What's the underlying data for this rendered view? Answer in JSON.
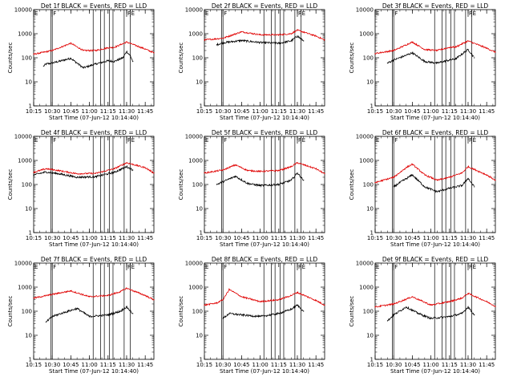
{
  "figure": {
    "colors": {
      "events": "#000000",
      "lld": "#e00000",
      "markers": "#000000",
      "background": "#ffffff"
    }
  },
  "chart_data": [
    {
      "type": "line",
      "title": "Det 1f BLACK = Events, RED = LLD",
      "xlabel": "Start Time (07-Jun-12 10:14:40)",
      "ylabel": "Counts/sec",
      "yscale": "log",
      "ylim": [
        1,
        10000
      ],
      "xlim": [
        "10:15",
        "11:52"
      ],
      "xticks": [
        "10:15",
        "10:30",
        "10:45",
        "11:00",
        "11:15",
        "11:30",
        "11:45"
      ],
      "yticks": [
        "1",
        "10",
        "100",
        "1000",
        "10000"
      ],
      "flags": [
        {
          "x": "10:15",
          "label": "E"
        },
        {
          "x": "10:30",
          "label": "F"
        },
        {
          "x": "11:30",
          "label": "F"
        },
        {
          "x": "11:33",
          "label": "E"
        }
      ],
      "marker_times": [
        "10:30",
        "10:29",
        "11:03",
        "11:09",
        "11:12",
        "11:16",
        "11:19",
        "11:28",
        "11:33"
      ],
      "series": [
        {
          "name": "Events",
          "color": "#000000",
          "x": [
            "10:23",
            "10:25",
            "10:30",
            "10:45",
            "10:55",
            "11:05",
            "11:15",
            "11:20",
            "11:27",
            "11:30",
            "11:33",
            "11:35"
          ],
          "values": [
            45,
            55,
            60,
            95,
            38,
            55,
            75,
            70,
            100,
            180,
            120,
            70
          ]
        },
        {
          "name": "LLD",
          "color": "#e00000",
          "x": [
            "10:15",
            "10:30",
            "10:45",
            "10:55",
            "11:05",
            "11:15",
            "11:20",
            "11:30",
            "11:45",
            "11:52"
          ],
          "values": [
            140,
            200,
            400,
            200,
            200,
            260,
            270,
            450,
            230,
            160
          ]
        }
      ]
    },
    {
      "type": "line",
      "title": "Det 2f BLACK = Events, RED = LLD",
      "xlabel": "Start Time (07-Jun-12 10:14:40)",
      "ylabel": "Counts/sec",
      "yscale": "log",
      "ylim": [
        1,
        10000
      ],
      "xlim": [
        "10:15",
        "11:52"
      ],
      "xticks": [
        "10:15",
        "10:30",
        "10:45",
        "11:00",
        "11:15",
        "11:30",
        "11:45"
      ],
      "yticks": [
        "1",
        "10",
        "100",
        "1000",
        "10000"
      ],
      "flags": [
        {
          "x": "10:15",
          "label": "E"
        },
        {
          "x": "10:30",
          "label": "F"
        },
        {
          "x": "11:30",
          "label": "F"
        },
        {
          "x": "11:33",
          "label": "E"
        }
      ],
      "marker_times": [
        "10:30",
        "10:29",
        "11:03",
        "11:09",
        "11:12",
        "11:16",
        "11:19",
        "11:28",
        "11:33"
      ],
      "series": [
        {
          "name": "Events",
          "color": "#000000",
          "x": [
            "10:25",
            "10:30",
            "10:45",
            "11:00",
            "11:15",
            "11:25",
            "11:30",
            "11:35"
          ],
          "values": [
            350,
            420,
            520,
            430,
            400,
            500,
            800,
            500
          ]
        },
        {
          "name": "LLD",
          "color": "#e00000",
          "x": [
            "10:15",
            "10:30",
            "10:45",
            "11:00",
            "11:15",
            "11:25",
            "11:30",
            "11:45",
            "11:52"
          ],
          "values": [
            550,
            650,
            1200,
            900,
            900,
            1000,
            1400,
            800,
            550
          ]
        }
      ]
    },
    {
      "type": "line",
      "title": "Det 3f BLACK = Events, RED = LLD",
      "xlabel": "Start Time (07-Jun-12 10:14:40)",
      "ylabel": "Counts/sec",
      "yscale": "log",
      "ylim": [
        1,
        10000
      ],
      "xlim": [
        "10:15",
        "11:52"
      ],
      "xticks": [
        "10:15",
        "10:30",
        "10:45",
        "11:00",
        "11:15",
        "11:30",
        "11:45"
      ],
      "yticks": [
        "1",
        "10",
        "100",
        "1000",
        "10000"
      ],
      "flags": [
        {
          "x": "10:15",
          "label": "E"
        },
        {
          "x": "10:30",
          "label": "F"
        },
        {
          "x": "11:30",
          "label": "F"
        },
        {
          "x": "11:33",
          "label": "E"
        }
      ],
      "marker_times": [
        "10:30",
        "10:29",
        "11:03",
        "11:09",
        "11:12",
        "11:16",
        "11:19",
        "11:28",
        "11:33"
      ],
      "series": [
        {
          "name": "Events",
          "color": "#000000",
          "x": [
            "10:25",
            "10:30",
            "10:45",
            "10:55",
            "11:05",
            "11:15",
            "11:20",
            "11:30",
            "11:35"
          ],
          "values": [
            60,
            80,
            160,
            70,
            60,
            80,
            90,
            220,
            100
          ]
        },
        {
          "name": "LLD",
          "color": "#e00000",
          "x": [
            "10:15",
            "10:30",
            "10:45",
            "10:55",
            "11:05",
            "11:15",
            "11:20",
            "11:30",
            "11:45",
            "11:52"
          ],
          "values": [
            150,
            200,
            450,
            220,
            200,
            270,
            280,
            500,
            250,
            170
          ]
        }
      ]
    },
    {
      "type": "line",
      "title": "Det 4f BLACK = Events, RED = LLD",
      "xlabel": "Start Time (07-Jun-12 10:14:40)",
      "ylabel": "Counts/sec",
      "yscale": "log",
      "ylim": [
        1,
        10000
      ],
      "xlim": [
        "10:15",
        "11:52"
      ],
      "xticks": [
        "10:15",
        "10:30",
        "10:45",
        "11:00",
        "11:15",
        "11:30",
        "11:45"
      ],
      "yticks": [
        "1",
        "10",
        "100",
        "1000",
        "10000"
      ],
      "flags": [
        {
          "x": "10:15",
          "label": "E"
        },
        {
          "x": "10:30",
          "label": "F"
        },
        {
          "x": "11:30",
          "label": "F"
        },
        {
          "x": "11:33",
          "label": "E"
        }
      ],
      "marker_times": [
        "10:30",
        "10:29",
        "11:03",
        "11:09",
        "11:12",
        "11:16",
        "11:19",
        "11:28",
        "11:33"
      ],
      "series": [
        {
          "name": "Events",
          "color": "#000000",
          "x": [
            "10:15",
            "10:25",
            "10:35",
            "10:50",
            "11:05",
            "11:20",
            "11:30",
            "11:35"
          ],
          "values": [
            250,
            330,
            280,
            200,
            210,
            320,
            550,
            400
          ]
        },
        {
          "name": "LLD",
          "color": "#e00000",
          "x": [
            "10:15",
            "10:25",
            "10:35",
            "10:50",
            "11:05",
            "11:20",
            "11:30",
            "11:45",
            "11:52"
          ],
          "values": [
            320,
            450,
            380,
            280,
            290,
            450,
            800,
            500,
            300
          ]
        }
      ]
    },
    {
      "type": "line",
      "title": "Det 5f BLACK = Events, RED = LLD",
      "xlabel": "Start Time (07-Jun-12 10:14:40)",
      "ylabel": "Counts/sec",
      "yscale": "log",
      "ylim": [
        1,
        10000
      ],
      "xlim": [
        "10:15",
        "11:52"
      ],
      "xticks": [
        "10:15",
        "10:30",
        "10:45",
        "11:00",
        "11:15",
        "11:30",
        "11:45"
      ],
      "yticks": [
        "1",
        "10",
        "100",
        "1000",
        "10000"
      ],
      "flags": [
        {
          "x": "10:15",
          "label": "E"
        },
        {
          "x": "10:30",
          "label": "F"
        },
        {
          "x": "11:30",
          "label": "F"
        },
        {
          "x": "11:33",
          "label": "E"
        }
      ],
      "marker_times": [
        "10:30",
        "10:29",
        "11:03",
        "11:09",
        "11:12",
        "11:16",
        "11:19",
        "11:28",
        "11:33"
      ],
      "series": [
        {
          "name": "Events",
          "color": "#000000",
          "x": [
            "10:25",
            "10:30",
            "10:40",
            "10:50",
            "11:00",
            "11:15",
            "11:25",
            "11:30",
            "11:35"
          ],
          "values": [
            100,
            130,
            220,
            110,
            90,
            100,
            150,
            300,
            150
          ]
        },
        {
          "name": "LLD",
          "color": "#e00000",
          "x": [
            "10:15",
            "10:30",
            "10:40",
            "10:50",
            "11:00",
            "11:15",
            "11:25",
            "11:30",
            "11:45",
            "11:52"
          ],
          "values": [
            300,
            400,
            650,
            380,
            350,
            380,
            550,
            800,
            450,
            280
          ]
        }
      ]
    },
    {
      "type": "line",
      "title": "Det 6f BLACK = Events, RED = LLD",
      "xlabel": "Start Time (07-Jun-12 10:14:40)",
      "ylabel": "Counts/sec",
      "yscale": "log",
      "ylim": [
        1,
        10000
      ],
      "xlim": [
        "10:15",
        "11:52"
      ],
      "xticks": [
        "10:15",
        "10:30",
        "10:45",
        "11:00",
        "11:15",
        "11:30",
        "11:45"
      ],
      "yticks": [
        "1",
        "10",
        "100",
        "1000",
        "10000"
      ],
      "flags": [
        {
          "x": "10:15",
          "label": "E"
        },
        {
          "x": "10:30",
          "label": "F"
        },
        {
          "x": "11:30",
          "label": "F"
        },
        {
          "x": "11:33",
          "label": "E"
        }
      ],
      "marker_times": [
        "10:30",
        "10:29",
        "11:03",
        "11:09",
        "11:12",
        "11:16",
        "11:19",
        "11:28",
        "11:33"
      ],
      "series": [
        {
          "name": "Events",
          "color": "#000000",
          "x": [
            "10:30",
            "10:35",
            "10:45",
            "10:55",
            "11:05",
            "11:15",
            "11:25",
            "11:30",
            "11:35"
          ],
          "values": [
            80,
            120,
            250,
            80,
            50,
            70,
            90,
            180,
            80
          ]
        },
        {
          "name": "LLD",
          "color": "#e00000",
          "x": [
            "10:15",
            "10:30",
            "10:40",
            "10:45",
            "10:55",
            "11:05",
            "11:15",
            "11:25",
            "11:30",
            "11:45",
            "11:52"
          ],
          "values": [
            120,
            200,
            500,
            700,
            250,
            150,
            200,
            300,
            550,
            250,
            150
          ]
        }
      ]
    },
    {
      "type": "line",
      "title": "Det 7f BLACK = Events, RED = LLD",
      "xlabel": "Start Time (07-Jun-12 10:14:40)",
      "ylabel": "Counts/sec",
      "yscale": "log",
      "ylim": [
        1,
        10000
      ],
      "xlim": [
        "10:15",
        "11:52"
      ],
      "xticks": [
        "10:15",
        "10:30",
        "10:45",
        "11:00",
        "11:15",
        "11:30",
        "11:45"
      ],
      "yticks": [
        "1",
        "10",
        "100",
        "1000",
        "10000"
      ],
      "flags": [
        {
          "x": "10:15",
          "label": "E"
        },
        {
          "x": "10:30",
          "label": "F"
        },
        {
          "x": "11:30",
          "label": "F"
        },
        {
          "x": "11:33",
          "label": "E"
        }
      ],
      "marker_times": [
        "10:30",
        "10:29",
        "11:03",
        "11:09",
        "11:12",
        "11:16",
        "11:19",
        "11:28",
        "11:33"
      ],
      "series": [
        {
          "name": "Events",
          "color": "#000000",
          "x": [
            "10:25",
            "10:30",
            "10:40",
            "10:50",
            "11:00",
            "11:15",
            "11:25",
            "11:30",
            "11:35"
          ],
          "values": [
            35,
            60,
            90,
            130,
            60,
            70,
            100,
            150,
            80
          ]
        },
        {
          "name": "LLD",
          "color": "#e00000",
          "x": [
            "10:15",
            "10:30",
            "10:45",
            "11:00",
            "11:15",
            "11:25",
            "11:30",
            "11:45",
            "11:52"
          ],
          "values": [
            350,
            500,
            700,
            400,
            450,
            650,
            900,
            450,
            300
          ]
        }
      ]
    },
    {
      "type": "line",
      "title": "Det 8f BLACK = Events, RED = LLD",
      "xlabel": "Start Time (07-Jun-12 10:14:40)",
      "ylabel": "Counts/sec",
      "yscale": "log",
      "ylim": [
        1,
        10000
      ],
      "xlim": [
        "10:15",
        "11:52"
      ],
      "xticks": [
        "10:15",
        "10:30",
        "10:45",
        "11:00",
        "11:15",
        "11:30",
        "11:45"
      ],
      "yticks": [
        "1",
        "10",
        "100",
        "1000",
        "10000"
      ],
      "flags": [
        {
          "x": "10:15",
          "label": "E"
        },
        {
          "x": "10:30",
          "label": "F"
        },
        {
          "x": "11:30",
          "label": "F"
        },
        {
          "x": "11:33",
          "label": "E"
        }
      ],
      "marker_times": [
        "10:30",
        "10:29",
        "11:03",
        "11:09",
        "11:12",
        "11:16",
        "11:19",
        "11:28",
        "11:33"
      ],
      "series": [
        {
          "name": "Events",
          "color": "#000000",
          "x": [
            "10:30",
            "10:35",
            "10:45",
            "11:00",
            "11:15",
            "11:25",
            "11:30",
            "11:35"
          ],
          "values": [
            50,
            80,
            70,
            60,
            80,
            120,
            180,
            100
          ]
        },
        {
          "name": "LLD",
          "color": "#e00000",
          "x": [
            "10:15",
            "10:25",
            "10:30",
            "10:35",
            "10:45",
            "11:00",
            "11:15",
            "11:25",
            "11:30",
            "11:45",
            "11:52"
          ],
          "values": [
            180,
            220,
            300,
            800,
            400,
            250,
            300,
            450,
            600,
            280,
            180
          ]
        }
      ]
    },
    {
      "type": "line",
      "title": "Det 9f BLACK = Events, RED = LLD",
      "xlabel": "Start Time (07-Jun-12 10:14:40)",
      "ylabel": "Counts/sec",
      "yscale": "log",
      "ylim": [
        1,
        10000
      ],
      "xlim": [
        "10:15",
        "11:52"
      ],
      "xticks": [
        "10:15",
        "10:30",
        "10:45",
        "11:00",
        "11:15",
        "11:30",
        "11:45"
      ],
      "yticks": [
        "1",
        "10",
        "100",
        "1000",
        "10000"
      ],
      "flags": [
        {
          "x": "10:15",
          "label": "E"
        },
        {
          "x": "10:30",
          "label": "F"
        },
        {
          "x": "11:30",
          "label": "F"
        },
        {
          "x": "11:33",
          "label": "E"
        }
      ],
      "marker_times": [
        "10:30",
        "10:29",
        "11:03",
        "11:09",
        "11:12",
        "11:16",
        "11:19",
        "11:28",
        "11:33"
      ],
      "series": [
        {
          "name": "Events",
          "color": "#000000",
          "x": [
            "10:25",
            "10:30",
            "10:40",
            "10:50",
            "11:00",
            "11:15",
            "11:25",
            "11:30",
            "11:35"
          ],
          "values": [
            40,
            70,
            150,
            80,
            50,
            60,
            80,
            150,
            70
          ]
        },
        {
          "name": "LLD",
          "color": "#e00000",
          "x": [
            "10:15",
            "10:30",
            "10:45",
            "11:00",
            "11:15",
            "11:25",
            "11:30",
            "11:45",
            "11:52"
          ],
          "values": [
            150,
            200,
            400,
            180,
            250,
            350,
            550,
            250,
            160
          ]
        }
      ]
    }
  ]
}
